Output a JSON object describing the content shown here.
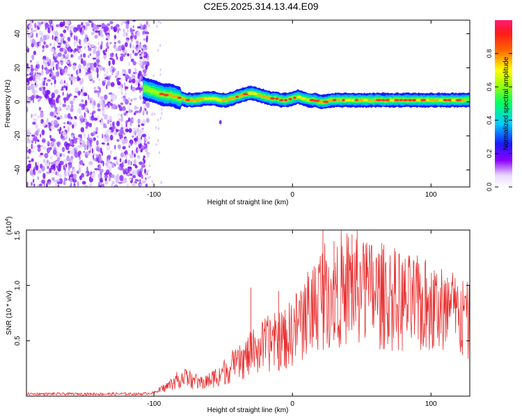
{
  "title": "C2E5.2025.314.13.44.E09",
  "chart_data": [
    {
      "type": "heatmap",
      "title": "C2E5.2025.314.13.44.E09",
      "xlabel": "Height of straight line (km)",
      "ylabel": "Frequency (Hz)",
      "xlim": [
        -192,
        128
      ],
      "ylim": [
        -50,
        48
      ],
      "xticks": [
        -100,
        0,
        100
      ],
      "yticks": [
        -40,
        -20,
        0,
        20,
        40
      ],
      "colorbar": {
        "label": "Normalized spectral amplitude",
        "range": [
          0,
          1
        ],
        "ticks": [
          "0.0",
          "0.2",
          "0.4",
          "0.6",
          "0.8"
        ]
      },
      "noise_region_x": [
        -192,
        -108
      ],
      "ridge": {
        "x": [
          -108,
          -104,
          -100,
          -96,
          -92,
          -88,
          -84,
          -80,
          -76,
          -72,
          -68,
          -64,
          -60,
          -56,
          -52,
          -48,
          -44,
          -40,
          -36,
          -32,
          -28,
          -24,
          -20,
          -16,
          -12,
          -8,
          -4,
          0,
          4,
          8,
          12,
          16,
          20,
          24,
          28,
          32,
          36,
          40,
          50,
          60,
          70,
          80,
          90,
          100,
          110,
          120,
          128
        ],
        "freq_hz": [
          8,
          7,
          6,
          5,
          4,
          4,
          3,
          2,
          1,
          1,
          1,
          2,
          2,
          2,
          1,
          1,
          2,
          3,
          4,
          5,
          5,
          4,
          3,
          2,
          2,
          1,
          1,
          2,
          3,
          2,
          1,
          1,
          0,
          0,
          1,
          1,
          1,
          1,
          1,
          1,
          1,
          1,
          1,
          1,
          1,
          1,
          1
        ]
      }
    },
    {
      "type": "line",
      "xlabel": "Height of straight line (km)",
      "ylabel": "SNR (10 * v/v)",
      "y_scale_label": "(x10",
      "y_scale_exp": "4",
      "y_scale_suffix": ")",
      "xlim": [
        -192,
        128
      ],
      "ylim": [
        0,
        1.5
      ],
      "xticks": [
        -100,
        0,
        100
      ],
      "yticks": [
        "0.5",
        "1.0",
        "1.5"
      ],
      "color": "#e83030",
      "series": [
        {
          "name": "SNR",
          "x": [
            -192,
            -160,
            -130,
            -110,
            -100,
            -95,
            -90,
            -85,
            -80,
            -75,
            -70,
            -65,
            -60,
            -55,
            -50,
            -45,
            -40,
            -35,
            -30,
            -25,
            -20,
            -15,
            -10,
            -5,
            0,
            5,
            10,
            15,
            20,
            25,
            30,
            35,
            40,
            45,
            50,
            55,
            60,
            65,
            70,
            75,
            80,
            85,
            90,
            95,
            100,
            105,
            110,
            115,
            120,
            125,
            128
          ],
          "values": [
            0.02,
            0.02,
            0.02,
            0.02,
            0.03,
            0.06,
            0.09,
            0.13,
            0.17,
            0.16,
            0.13,
            0.12,
            0.14,
            0.18,
            0.22,
            0.25,
            0.28,
            0.33,
            0.38,
            0.43,
            0.46,
            0.48,
            0.5,
            0.52,
            0.58,
            0.66,
            0.74,
            0.82,
            0.9,
            0.94,
            0.96,
            0.98,
            0.99,
            0.98,
            0.96,
            0.94,
            0.92,
            0.9,
            0.88,
            0.86,
            0.84,
            0.83,
            0.82,
            0.81,
            0.8,
            0.79,
            0.77,
            0.75,
            0.72,
            0.68,
            0.65
          ],
          "peak_values": [
            [
              22,
              1.5
            ],
            [
              30,
              1.4
            ],
            [
              43,
              1.46
            ],
            [
              -30,
              0.98
            ],
            [
              -10,
              0.95
            ]
          ]
        }
      ]
    }
  ]
}
